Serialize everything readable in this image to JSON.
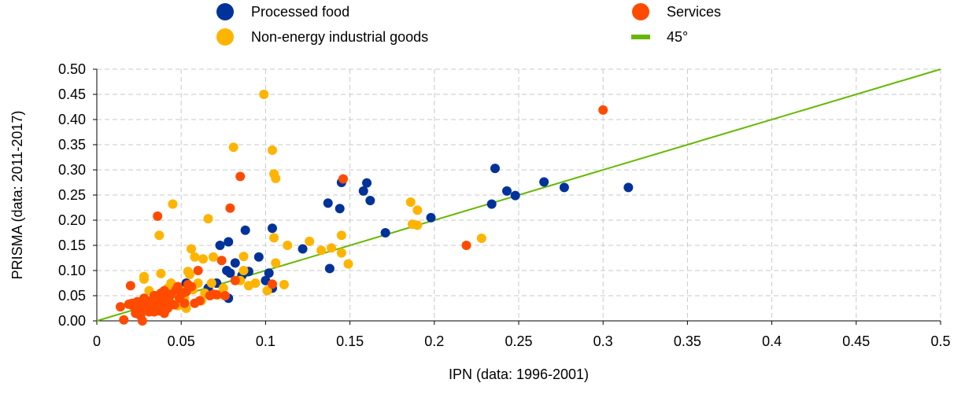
{
  "chart_data": {
    "type": "scatter",
    "xlabel": "IPN (data: 1996-2001)",
    "ylabel": "PRISMA (data: 2011-2017)",
    "xlim": [
      0,
      0.5
    ],
    "ylim": [
      0,
      0.5
    ],
    "x_ticks": [
      "0",
      "0.05",
      "0.1",
      "0.15",
      "0.2",
      "0.25",
      "0.3",
      "0.35",
      "0.4",
      "0.45",
      "0.5"
    ],
    "y_ticks": [
      "0.00",
      "0.05",
      "0.10",
      "0.15",
      "0.20",
      "0.25",
      "0.30",
      "0.35",
      "0.40",
      "0.45",
      "0.50"
    ],
    "grid": true,
    "legend_position": "top",
    "series": [
      {
        "name": "Processed food",
        "color": "#003299",
        "points": [
          [
            0.053,
            0.075
          ],
          [
            0.066,
            0.065
          ],
          [
            0.071,
            0.075
          ],
          [
            0.073,
            0.15
          ],
          [
            0.077,
            0.1
          ],
          [
            0.078,
            0.045
          ],
          [
            0.078,
            0.157
          ],
          [
            0.079,
            0.095
          ],
          [
            0.082,
            0.115
          ],
          [
            0.086,
            0.09
          ],
          [
            0.088,
            0.18
          ],
          [
            0.09,
            0.098
          ],
          [
            0.096,
            0.127
          ],
          [
            0.1,
            0.08
          ],
          [
            0.102,
            0.095
          ],
          [
            0.104,
            0.065
          ],
          [
            0.104,
            0.184
          ],
          [
            0.122,
            0.143
          ],
          [
            0.137,
            0.234
          ],
          [
            0.138,
            0.104
          ],
          [
            0.144,
            0.223
          ],
          [
            0.145,
            0.275
          ],
          [
            0.158,
            0.258
          ],
          [
            0.16,
            0.274
          ],
          [
            0.162,
            0.239
          ],
          [
            0.171,
            0.175
          ],
          [
            0.198,
            0.205
          ],
          [
            0.234,
            0.232
          ],
          [
            0.236,
            0.303
          ],
          [
            0.243,
            0.258
          ],
          [
            0.248,
            0.249
          ],
          [
            0.265,
            0.276
          ],
          [
            0.277,
            0.265
          ],
          [
            0.315,
            0.265
          ]
        ]
      },
      {
        "name": "Non-energy industrial goods",
        "color": "#FFB400",
        "points": [
          [
            0.028,
            0.088
          ],
          [
            0.028,
            0.083
          ],
          [
            0.031,
            0.06
          ],
          [
            0.035,
            0.05
          ],
          [
            0.037,
            0.17
          ],
          [
            0.038,
            0.094
          ],
          [
            0.04,
            0.045
          ],
          [
            0.042,
            0.065
          ],
          [
            0.044,
            0.075
          ],
          [
            0.045,
            0.232
          ],
          [
            0.046,
            0.055
          ],
          [
            0.048,
            0.03
          ],
          [
            0.05,
            0.06
          ],
          [
            0.052,
            0.045
          ],
          [
            0.053,
            0.025
          ],
          [
            0.054,
            0.098
          ],
          [
            0.055,
            0.092
          ],
          [
            0.056,
            0.143
          ],
          [
            0.057,
            0.062
          ],
          [
            0.058,
            0.127
          ],
          [
            0.06,
            0.075
          ],
          [
            0.062,
            0.04
          ],
          [
            0.063,
            0.123
          ],
          [
            0.064,
            0.055
          ],
          [
            0.066,
            0.203
          ],
          [
            0.068,
            0.075
          ],
          [
            0.069,
            0.127
          ],
          [
            0.072,
            0.052
          ],
          [
            0.075,
            0.065
          ],
          [
            0.081,
            0.345
          ],
          [
            0.085,
            0.08
          ],
          [
            0.087,
            0.1
          ],
          [
            0.087,
            0.128
          ],
          [
            0.09,
            0.07
          ],
          [
            0.094,
            0.075
          ],
          [
            0.099,
            0.45
          ],
          [
            0.101,
            0.06
          ],
          [
            0.104,
            0.339
          ],
          [
            0.105,
            0.165
          ],
          [
            0.105,
            0.292
          ],
          [
            0.106,
            0.115
          ],
          [
            0.106,
            0.283
          ],
          [
            0.111,
            0.072
          ],
          [
            0.113,
            0.15
          ],
          [
            0.126,
            0.158
          ],
          [
            0.133,
            0.14
          ],
          [
            0.139,
            0.145
          ],
          [
            0.145,
            0.17
          ],
          [
            0.145,
            0.135
          ],
          [
            0.149,
            0.113
          ],
          [
            0.186,
            0.236
          ],
          [
            0.187,
            0.192
          ],
          [
            0.19,
            0.22
          ],
          [
            0.19,
            0.19
          ],
          [
            0.228,
            0.164
          ]
        ]
      },
      {
        "name": "Services",
        "color": "#FF4B00",
        "points": [
          [
            0.014,
            0.028
          ],
          [
            0.016,
            0.002
          ],
          [
            0.019,
            0.033
          ],
          [
            0.02,
            0.07
          ],
          [
            0.021,
            0.035
          ],
          [
            0.022,
            0.028
          ],
          [
            0.023,
            0.015
          ],
          [
            0.024,
            0.038
          ],
          [
            0.025,
            0.02
          ],
          [
            0.026,
            0.01
          ],
          [
            0.027,
            0.03
          ],
          [
            0.027,
            0.0
          ],
          [
            0.028,
            0.045
          ],
          [
            0.029,
            0.025
          ],
          [
            0.03,
            0.035
          ],
          [
            0.031,
            0.018
          ],
          [
            0.032,
            0.04
          ],
          [
            0.033,
            0.03
          ],
          [
            0.034,
            0.05
          ],
          [
            0.034,
            0.018
          ],
          [
            0.035,
            0.028
          ],
          [
            0.036,
            0.208
          ],
          [
            0.037,
            0.04
          ],
          [
            0.037,
            0.02
          ],
          [
            0.038,
            0.055
          ],
          [
            0.039,
            0.03
          ],
          [
            0.04,
            0.015
          ],
          [
            0.04,
            0.06
          ],
          [
            0.041,
            0.045
          ],
          [
            0.042,
            0.025
          ],
          [
            0.043,
            0.038
          ],
          [
            0.044,
            0.053
          ],
          [
            0.046,
            0.032
          ],
          [
            0.047,
            0.062
          ],
          [
            0.048,
            0.068
          ],
          [
            0.049,
            0.045
          ],
          [
            0.051,
            0.055
          ],
          [
            0.052,
            0.035
          ],
          [
            0.053,
            0.058
          ],
          [
            0.054,
            0.072
          ],
          [
            0.056,
            0.068
          ],
          [
            0.058,
            0.035
          ],
          [
            0.06,
            0.1
          ],
          [
            0.061,
            0.04
          ],
          [
            0.067,
            0.05
          ],
          [
            0.069,
            0.053
          ],
          [
            0.071,
            0.052
          ],
          [
            0.074,
            0.12
          ],
          [
            0.076,
            0.05
          ],
          [
            0.079,
            0.224
          ],
          [
            0.082,
            0.08
          ],
          [
            0.085,
            0.287
          ],
          [
            0.104,
            0.073
          ],
          [
            0.146,
            0.282
          ],
          [
            0.219,
            0.15
          ],
          [
            0.3,
            0.419
          ]
        ]
      }
    ],
    "reference_line": {
      "name": "45°",
      "color": "#65B800",
      "from": [
        0,
        0
      ],
      "to": [
        0.5,
        0.5
      ]
    }
  }
}
